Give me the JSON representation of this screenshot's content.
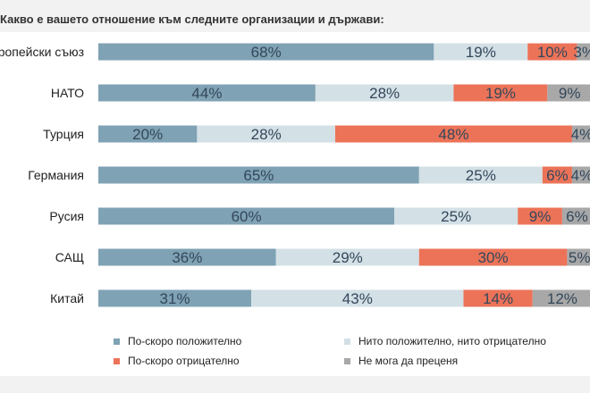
{
  "chart_data": {
    "type": "bar",
    "orientation": "horizontal-stacked-100",
    "title": "Какво е вашето отношение към следните организации и държави:",
    "categories": [
      "Европейски съюз",
      "НАТО",
      "Турция",
      "Германия",
      "Русия",
      "САЩ",
      "Китай"
    ],
    "series": [
      {
        "name": "По-скоро положително",
        "color": "#7fa2b4",
        "values": [
          68,
          44,
          20,
          65,
          60,
          36,
          31
        ]
      },
      {
        "name": "Нито положително, нито отрицателно",
        "color": "#d3e0e6",
        "values": [
          19,
          28,
          28,
          25,
          25,
          29,
          43
        ]
      },
      {
        "name": "По-скоро отрицателно",
        "color": "#ec7358",
        "values": [
          10,
          19,
          48,
          6,
          9,
          30,
          14
        ]
      },
      {
        "name": "Не мога да преценя",
        "color": "#a8a8a8",
        "values": [
          3,
          9,
          4,
          4,
          6,
          5,
          12
        ]
      }
    ],
    "value_suffix": "%",
    "xlim": [
      0,
      100
    ],
    "legend_position": "bottom"
  }
}
